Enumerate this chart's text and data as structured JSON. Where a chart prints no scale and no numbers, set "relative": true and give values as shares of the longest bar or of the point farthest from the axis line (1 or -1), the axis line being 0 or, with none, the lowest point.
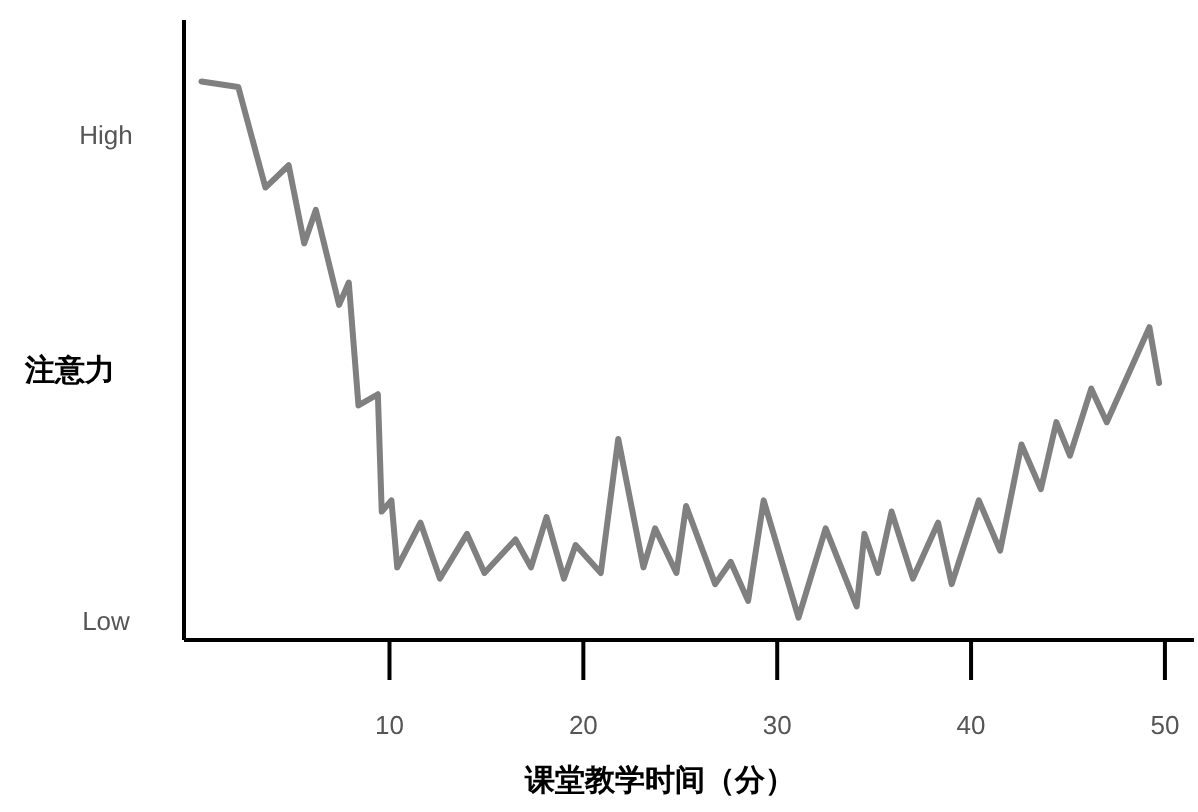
{
  "chart_data": {
    "type": "line",
    "xlabel": "课堂教学时间（分）",
    "ylabel": "注意力",
    "relative": true,
    "x": [
      0.3,
      2.2,
      3.6,
      4.8,
      5.6,
      6.2,
      7.4,
      7.9,
      8.4,
      9.4,
      9.6,
      10.1,
      10.4,
      11.6,
      12.6,
      14.0,
      14.9,
      16.5,
      17.3,
      18.1,
      19.0,
      19.6,
      20.9,
      21.8,
      23.1,
      23.7,
      24.8,
      25.3,
      26.8,
      27.6,
      28.5,
      29.3,
      31.1,
      32.5,
      34.1,
      34.5,
      35.2,
      35.9,
      37.0,
      38.3,
      39.0,
      40.4,
      41.5,
      42.6,
      43.6,
      44.4,
      45.1,
      46.2,
      47.0,
      49.2,
      49.7
    ],
    "series": [
      {
        "color": "#808080",
        "values": [
          1.0,
          0.99,
          0.81,
          0.85,
          0.71,
          0.77,
          0.6,
          0.64,
          0.42,
          0.44,
          0.23,
          0.25,
          0.13,
          0.21,
          0.11,
          0.19,
          0.12,
          0.18,
          0.13,
          0.22,
          0.11,
          0.17,
          0.12,
          0.36,
          0.13,
          0.2,
          0.12,
          0.24,
          0.1,
          0.14,
          0.07,
          0.25,
          0.04,
          0.2,
          0.06,
          0.19,
          0.12,
          0.23,
          0.11,
          0.21,
          0.1,
          0.25,
          0.16,
          0.35,
          0.27,
          0.39,
          0.33,
          0.45,
          0.39,
          0.56,
          0.46
        ]
      }
    ],
    "xlim": [
      -0.6,
      51.5
    ],
    "xticks": [
      10,
      20,
      30,
      40,
      50
    ],
    "annotations": [
      "High",
      "Low"
    ],
    "grid": false,
    "marker": "none",
    "line_style": "solid"
  }
}
